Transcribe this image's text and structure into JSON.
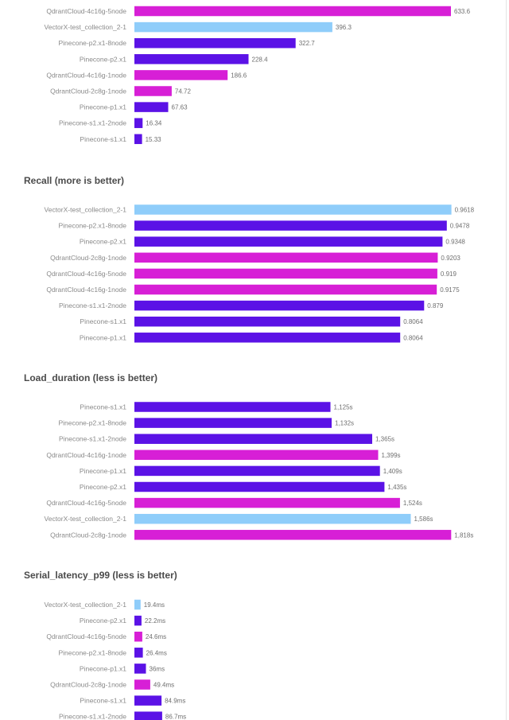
{
  "colors": {
    "Pinecone": "#5b12e6",
    "QdrantCloud": "#d71fd6",
    "VectorX": "#8fcdfa"
  },
  "chart_data": [
    {
      "type": "bar",
      "orientation": "horizontal",
      "title": "",
      "categories": [
        "QdrantCloud-4c16g-5node",
        "VectorX-test_collection_2-1",
        "Pinecone-p2.x1-8node",
        "Pinecone-p2.x1",
        "QdrantCloud-4c16g-1node",
        "QdrantCloud-2c8g-1node",
        "Pinecone-p1.x1",
        "Pinecone-s1.x1-2node",
        "Pinecone-s1.x1"
      ],
      "values": [
        633.6,
        396.3,
        322.7,
        228.4,
        186.6,
        74.72,
        67.63,
        16.34,
        15.33
      ],
      "value_labels": [
        "633.6",
        "396.3",
        "322.7",
        "228.4",
        "186.6",
        "74.72",
        "67.63",
        "16.34",
        "15.33"
      ],
      "xlim": [
        0,
        640
      ]
    },
    {
      "type": "bar",
      "orientation": "horizontal",
      "title": "Recall (more is better)",
      "categories": [
        "VectorX-test_collection_2-1",
        "Pinecone-p2.x1-8node",
        "Pinecone-p2.x1",
        "QdrantCloud-2c8g-1node",
        "QdrantCloud-4c16g-5node",
        "QdrantCloud-4c16g-1node",
        "Pinecone-s1.x1-2node",
        "Pinecone-s1.x1",
        "Pinecone-p1.x1"
      ],
      "values": [
        0.9618,
        0.9478,
        0.9348,
        0.9203,
        0.919,
        0.9175,
        0.879,
        0.8064,
        0.8064
      ],
      "value_labels": [
        "0.9618",
        "0.9478",
        "0.9348",
        "0.9203",
        "0.919",
        "0.9175",
        "0.879",
        "0.8064",
        "0.8064"
      ],
      "xlim": [
        0,
        0.97
      ]
    },
    {
      "type": "bar",
      "orientation": "horizontal",
      "title": "Load_duration (less is better)",
      "categories": [
        "Pinecone-s1.x1",
        "Pinecone-p2.x1-8node",
        "Pinecone-s1.x1-2node",
        "QdrantCloud-4c16g-1node",
        "Pinecone-p1.x1",
        "Pinecone-p2.x1",
        "QdrantCloud-4c16g-5node",
        "VectorX-test_collection_2-1",
        "QdrantCloud-2c8g-1node"
      ],
      "values": [
        1125,
        1132,
        1365,
        1399,
        1409,
        1435,
        1524,
        1586,
        1818
      ],
      "value_labels": [
        "1,125s",
        "1,132s",
        "1,365s",
        "1,399s",
        "1,409s",
        "1,435s",
        "1,524s",
        "1,586s",
        "1,818s"
      ],
      "xlim": [
        0,
        1835
      ]
    },
    {
      "type": "bar",
      "orientation": "horizontal",
      "title": "Serial_latency_p99 (less is better)",
      "categories": [
        "VectorX-test_collection_2-1",
        "Pinecone-p2.x1",
        "QdrantCloud-4c16g-5node",
        "Pinecone-p2.x1-8node",
        "Pinecone-p1.x1",
        "QdrantCloud-2c8g-1node",
        "Pinecone-s1.x1",
        "Pinecone-s1.x1-2node"
      ],
      "values": [
        19.4,
        22.2,
        24.6,
        26.4,
        36,
        49.4,
        84.9,
        86.7
      ],
      "value_labels": [
        "19.4ms",
        "22.2ms",
        "24.6ms",
        "26.4ms",
        "36ms",
        "49.4ms",
        "84.9ms",
        "86.7ms"
      ],
      "xlim": [
        0,
        1000
      ]
    }
  ]
}
